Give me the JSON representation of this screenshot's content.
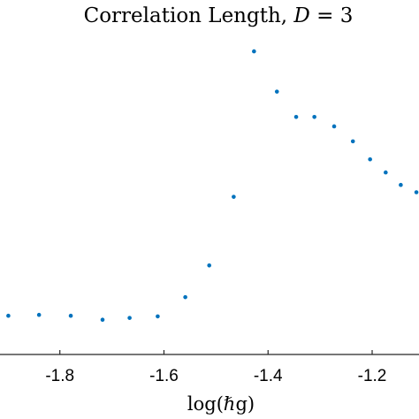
{
  "chart_data": {
    "type": "scatter",
    "title_prefix": "Correlation Length, ",
    "title_var": "D",
    "title_suffix": " = 3",
    "xlabel": "log(ℏg)",
    "ylabel": "",
    "xlim": [
      -1.915,
      -1.11
    ],
    "ylim": [
      0,
      1
    ],
    "xticks": [
      -1.8,
      -1.6,
      -1.4,
      -1.2
    ],
    "xtick_labels": [
      "-1.8",
      "-1.6",
      "-1.4",
      "-1.2"
    ],
    "grid": false,
    "legend": false,
    "marker_color": "#0072bd",
    "x": [
      -1.899,
      -1.84,
      -1.779,
      -1.718,
      -1.666,
      -1.612,
      -1.559,
      -1.513,
      -1.466,
      -1.427,
      -1.383,
      -1.346,
      -1.311,
      -1.273,
      -1.237,
      -1.204,
      -1.174,
      -1.145,
      -1.115
    ],
    "y": [
      0.095,
      0.098,
      0.095,
      0.082,
      0.088,
      0.093,
      0.156,
      0.26,
      0.485,
      0.962,
      0.83,
      0.747,
      0.747,
      0.716,
      0.667,
      0.608,
      0.565,
      0.524,
      0.5
    ]
  }
}
